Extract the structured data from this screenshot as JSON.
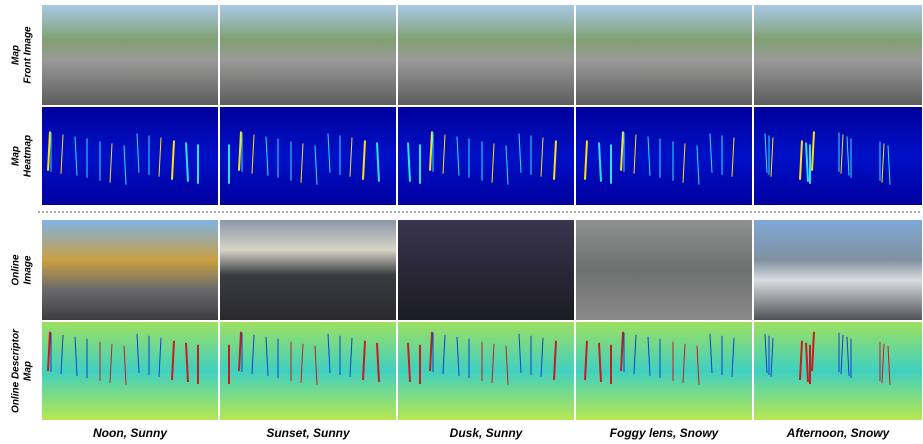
{
  "rows": [
    {
      "lines": [
        "Map",
        "Front Image"
      ]
    },
    {
      "lines": [
        "Map",
        "Heatmap"
      ]
    },
    {
      "lines": [
        "Online",
        "Image"
      ]
    },
    {
      "lines": [
        "Online Descriptor",
        "Map"
      ]
    }
  ],
  "columns": [
    "Noon, Sunny",
    "Sunset, Sunny",
    "Dusk, Sunny",
    "Foggy lens, Snowy",
    "Afternoon, Snowy"
  ]
}
